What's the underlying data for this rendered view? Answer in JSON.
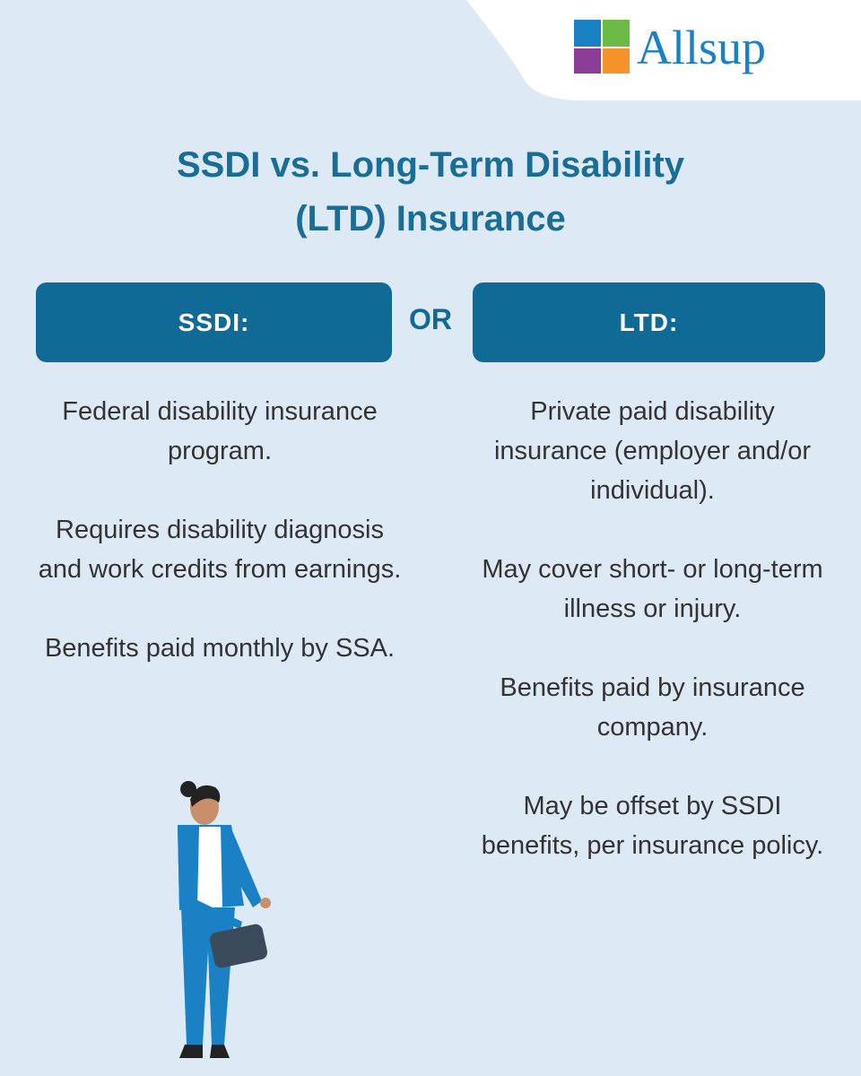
{
  "logo": {
    "text": "Allsup"
  },
  "title": {
    "lines": [
      "SSDI vs. Long-Term Disability",
      "(LTD) Insurance"
    ]
  },
  "separator": "OR",
  "left": {
    "header": "SSDI:",
    "items": [
      "Federal disability insurance program.",
      "Requires disability diagnosis and work credits from earnings.",
      "Benefits paid monthly by SSA."
    ]
  },
  "right": {
    "header": "LTD:",
    "items": [
      "Private paid disability insurance (employer and/or individual).",
      "May cover short- or long-term illness or injury.",
      "Benefits paid by insurance company.",
      "May be offset by SSDI benefits, per insurance policy."
    ]
  }
}
